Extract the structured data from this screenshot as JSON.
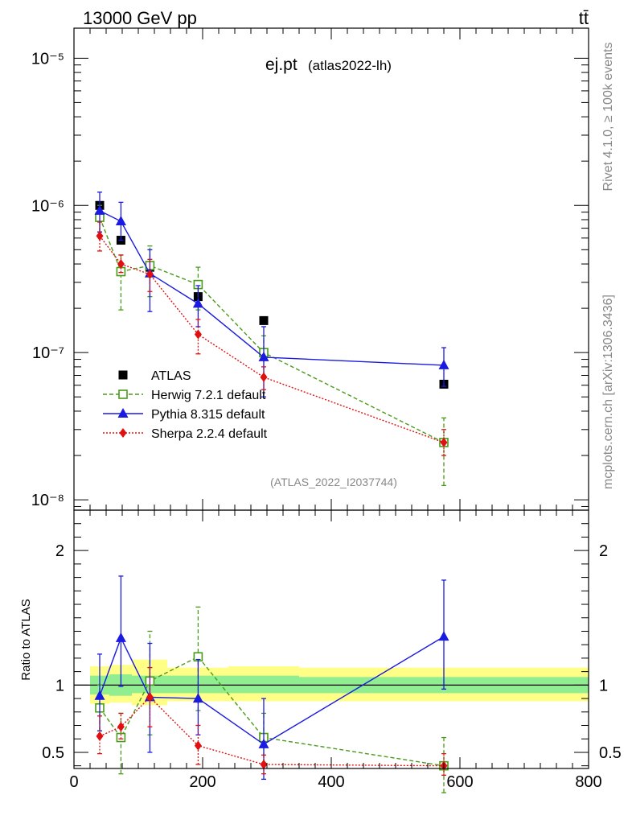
{
  "header": {
    "left": "13000 GeV pp",
    "right": "tt̄",
    "title": "ej.pt",
    "title_sub": "(atlas2022-lh)",
    "analysis_id": "(ATLAS_2022_I2037744)",
    "side_rivet": "Rivet 4.1.0, ≥ 100k events",
    "side_mcplots": "mcplots.cern.ch [arXiv:1306.3436]"
  },
  "chart_data": [
    {
      "type": "scatter",
      "yscale": "log",
      "xlim": [
        0,
        800
      ],
      "ylim": [
        8.5e-09,
        1.6e-05
      ],
      "yticks": [
        {
          "v": 1e-08,
          "label": "10⁻⁸"
        },
        {
          "v": 1e-07,
          "label": "10⁻⁷"
        },
        {
          "v": 1e-06,
          "label": "10⁻⁶"
        },
        {
          "v": 1e-05,
          "label": "10⁻⁵"
        }
      ],
      "legend_position": "middle-left",
      "series": [
        {
          "name": "ATLAS",
          "key": "atlas",
          "color": "#000000",
          "marker": "square",
          "line": "none",
          "x": [
            40,
            73,
            118,
            193,
            295,
            575
          ],
          "y": [
            1e-06,
            5.8e-07,
            3.8e-07,
            2.4e-07,
            1.65e-07,
            6.1e-08
          ],
          "err_lo": [],
          "err_hi": []
        },
        {
          "name": "Herwig 7.2.1 default",
          "key": "herwig",
          "color": "#4a9a1a",
          "marker": "open-square",
          "line": "dashed",
          "x": [
            40,
            73,
            118,
            193,
            295,
            575
          ],
          "y": [
            8.3e-07,
            3.55e-07,
            3.9e-07,
            2.9e-07,
            1e-07,
            2.45e-08
          ],
          "err_lo": [
            6.6e-07,
            1.95e-07,
            2.4e-07,
            1.95e-07,
            7e-08,
            1.25e-08
          ],
          "err_hi": [
            1e-06,
            4.6e-07,
            5.3e-07,
            3.8e-07,
            1.3e-07,
            3.6e-08
          ]
        },
        {
          "name": "Pythia 8.315 default",
          "key": "pythia",
          "color": "#1a1ae0",
          "marker": "triangle",
          "line": "solid",
          "x": [
            40,
            73,
            118,
            193,
            295,
            575
          ],
          "y": [
            9.2e-07,
            7.8e-07,
            3.45e-07,
            2.15e-07,
            9.3e-08,
            8.2e-08
          ],
          "err_lo": [
            6.6e-07,
            5.8e-07,
            1.9e-07,
            1.5e-07,
            5e-08,
            5.9e-08
          ],
          "err_hi": [
            1.23e-06,
            1.05e-06,
            5e-07,
            2.85e-07,
            1.5e-07,
            1.08e-07
          ]
        },
        {
          "name": "Sherpa 2.2.4 default",
          "key": "sherpa",
          "color": "#e01010",
          "marker": "diamond",
          "line": "dotted",
          "x": [
            40,
            73,
            118,
            193,
            295,
            575
          ],
          "y": [
            6.2e-07,
            4e-07,
            3.4e-07,
            1.33e-07,
            6.8e-08,
            2.45e-08
          ],
          "err_lo": [
            4.9e-07,
            3.5e-07,
            2.6e-07,
            9.8e-08,
            5.6e-08,
            2e-08
          ],
          "err_hi": [
            7.7e-07,
            4.6e-07,
            4.3e-07,
            1.68e-07,
            8e-08,
            3e-08
          ]
        }
      ]
    },
    {
      "type": "scatter",
      "ylabel": "Ratio to ATLAS",
      "xlim": [
        0,
        800
      ],
      "ylim": [
        0.38,
        2.3
      ],
      "xticks": [
        0,
        200,
        400,
        600,
        800
      ],
      "yticks": [
        {
          "v": 0.5,
          "label": "0.5"
        },
        {
          "v": 1,
          "label": "1"
        },
        {
          "v": 2,
          "label": "2"
        }
      ],
      "reference_line": 1,
      "bands": [
        {
          "x0": 25,
          "x1": 55,
          "lo1": 0.93,
          "hi1": 1.07,
          "lo2": 0.86,
          "hi2": 1.14
        },
        {
          "x0": 55,
          "x1": 90,
          "lo1": 0.92,
          "hi1": 1.08,
          "lo2": 0.87,
          "hi2": 1.15
        },
        {
          "x0": 90,
          "x1": 145,
          "lo1": 0.94,
          "hi1": 1.07,
          "lo2": 0.85,
          "hi2": 1.19
        },
        {
          "x0": 145,
          "x1": 240,
          "lo1": 0.94,
          "hi1": 1.07,
          "lo2": 0.88,
          "hi2": 1.13
        },
        {
          "x0": 240,
          "x1": 350,
          "lo1": 0.94,
          "hi1": 1.07,
          "lo2": 0.88,
          "hi2": 1.14
        },
        {
          "x0": 350,
          "x1": 800,
          "lo1": 0.94,
          "hi1": 1.06,
          "lo2": 0.88,
          "hi2": 1.13
        }
      ],
      "series": [
        {
          "name": "Herwig 7.2.1 default",
          "key": "herwig",
          "color": "#4a9a1a",
          "marker": "open-square",
          "line": "dashed",
          "x": [
            40,
            73,
            118,
            193,
            295,
            575
          ],
          "y": [
            0.83,
            0.61,
            1.03,
            1.21,
            0.61,
            0.4
          ],
          "err_lo": [
            0.66,
            0.34,
            0.63,
            0.81,
            0.42,
            0.2
          ],
          "err_hi": [
            1.0,
            0.79,
            1.4,
            1.58,
            0.79,
            0.61
          ]
        },
        {
          "name": "Pythia 8.315 default",
          "key": "pythia",
          "color": "#1a1ae0",
          "marker": "triangle",
          "line": "solid",
          "x": [
            40,
            73,
            118,
            193,
            295,
            575
          ],
          "y": [
            0.92,
            1.35,
            0.91,
            0.9,
            0.56,
            1.36
          ],
          "err_lo": [
            0.66,
            0.99,
            0.5,
            0.63,
            0.3,
            0.97
          ],
          "err_hi": [
            1.23,
            1.81,
            1.31,
            1.19,
            0.9,
            1.78
          ]
        },
        {
          "name": "Sherpa 2.2.4 default",
          "key": "sherpa",
          "color": "#e01010",
          "marker": "diamond",
          "line": "dotted",
          "x": [
            40,
            73,
            118,
            193,
            295,
            575
          ],
          "y": [
            0.62,
            0.69,
            0.91,
            0.55,
            0.41,
            0.4
          ],
          "err_lo": [
            0.49,
            0.6,
            0.69,
            0.41,
            0.34,
            0.33
          ],
          "err_hi": [
            0.77,
            0.79,
            1.13,
            0.7,
            0.48,
            0.49
          ]
        }
      ]
    }
  ]
}
